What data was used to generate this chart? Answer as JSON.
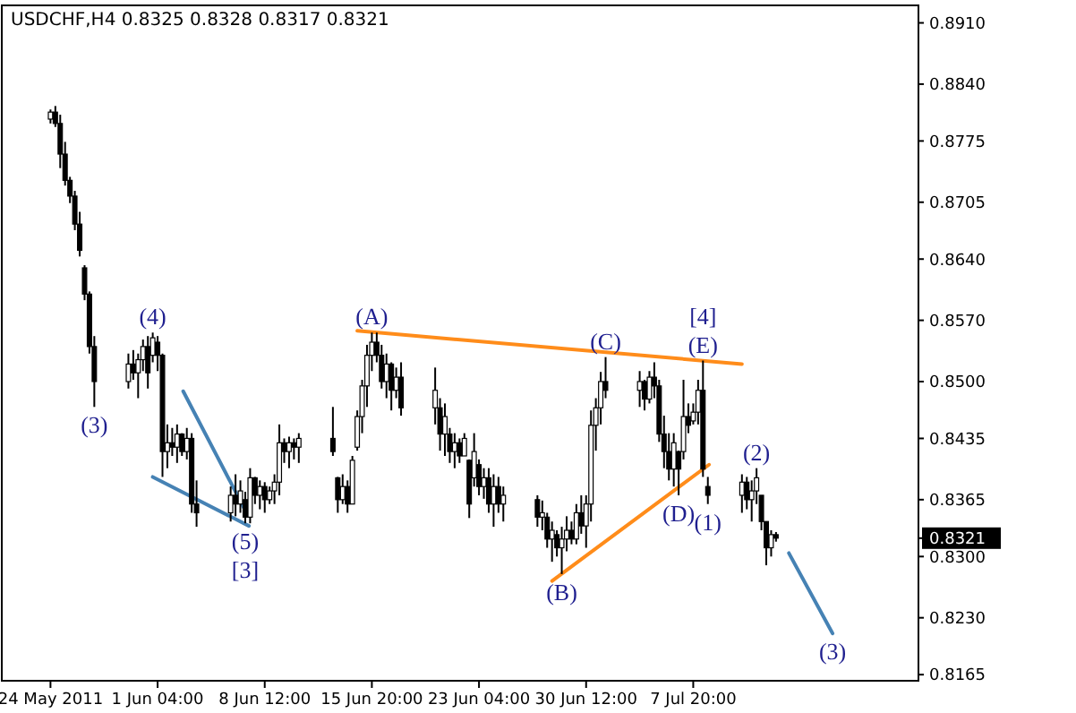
{
  "chart_data": {
    "type": "candlestick",
    "title": "USDCHF,H4  0.8325 0.8328 0.8317 0.8321",
    "color": "#000000",
    "x": [
      "2011-05-24T20:00",
      "2011-05-25T04:00",
      "2011-05-25T12:00",
      "2011-05-25T20:00",
      "2011-05-26T04:00",
      "2011-05-26T12:00",
      "2011-05-26T20:00",
      "2011-05-27T04:00",
      "2011-05-27T12:00",
      "2011-05-27T20:00",
      "2011-05-30T04:00",
      "2011-05-30T12:00",
      "2011-05-30T20:00",
      "2011-05-31T04:00",
      "2011-05-31T12:00",
      "2011-05-31T20:00",
      "2011-06-01T04:00",
      "2011-06-01T12:00",
      "2011-06-01T20:00",
      "2011-06-02T04:00",
      "2011-06-02T12:00",
      "2011-06-02T20:00",
      "2011-06-03T04:00",
      "2011-06-03T12:00",
      "2011-06-03T20:00",
      "2011-06-06T04:00",
      "2011-06-06T12:00",
      "2011-06-06T20:00",
      "2011-06-07T04:00",
      "2011-06-07T12:00",
      "2011-06-07T20:00",
      "2011-06-08T04:00",
      "2011-06-08T12:00",
      "2011-06-08T20:00",
      "2011-06-09T04:00",
      "2011-06-09T12:00",
      "2011-06-09T20:00",
      "2011-06-10T04:00",
      "2011-06-10T12:00",
      "2011-06-10T20:00",
      "2011-06-13T04:00",
      "2011-06-13T12:00",
      "2011-06-13T20:00",
      "2011-06-14T04:00",
      "2011-06-14T12:00",
      "2011-06-14T20:00",
      "2011-06-15T04:00",
      "2011-06-15T12:00",
      "2011-06-15T20:00",
      "2011-06-16T04:00",
      "2011-06-16T12:00",
      "2011-06-16T20:00",
      "2011-06-17T04:00",
      "2011-06-17T12:00",
      "2011-06-17T20:00",
      "2011-06-20T04:00",
      "2011-06-20T12:00",
      "2011-06-20T20:00",
      "2011-06-21T04:00",
      "2011-06-21T12:00",
      "2011-06-21T20:00",
      "2011-06-22T04:00",
      "2011-06-22T12:00",
      "2011-06-22T20:00",
      "2011-06-23T04:00",
      "2011-06-23T12:00",
      "2011-06-23T20:00",
      "2011-06-24T04:00",
      "2011-06-24T12:00",
      "2011-06-24T20:00",
      "2011-06-27T04:00",
      "2011-06-27T12:00",
      "2011-06-27T20:00",
      "2011-06-28T04:00",
      "2011-06-28T12:00",
      "2011-06-28T20:00",
      "2011-06-29T04:00",
      "2011-06-29T12:00",
      "2011-06-29T20:00",
      "2011-06-30T04:00",
      "2011-06-30T12:00",
      "2011-06-30T20:00",
      "2011-07-01T04:00",
      "2011-07-01T12:00",
      "2011-07-01T20:00",
      "2011-07-04T04:00",
      "2011-07-04T12:00",
      "2011-07-04T20:00",
      "2011-07-05T04:00",
      "2011-07-05T12:00",
      "2011-07-05T20:00",
      "2011-07-06T04:00",
      "2011-07-06T12:00",
      "2011-07-06T20:00",
      "2011-07-07T04:00",
      "2011-07-07T12:00",
      "2011-07-07T20:00",
      "2011-07-08T04:00",
      "2011-07-08T12:00",
      "2011-07-08T20:00",
      "2011-07-11T04:00",
      "2011-07-11T12:00",
      "2011-07-11T20:00",
      "2011-07-12T04:00",
      "2011-07-12T12:00",
      "2011-07-12T20:00",
      "2011-07-13T04:00",
      "2011-07-13T12:00"
    ],
    "ohlc": [
      [
        0.88,
        0.8811,
        0.8795,
        0.8808
      ],
      [
        0.8808,
        0.8815,
        0.8791,
        0.8795
      ],
      [
        0.8795,
        0.8805,
        0.8744,
        0.876
      ],
      [
        0.876,
        0.8774,
        0.8724,
        0.873
      ],
      [
        0.873,
        0.8734,
        0.8704,
        0.8712
      ],
      [
        0.8712,
        0.8718,
        0.8673,
        0.868
      ],
      [
        0.868,
        0.8694,
        0.8643,
        0.865
      ],
      [
        0.863,
        0.8633,
        0.8593,
        0.86
      ],
      [
        0.86,
        0.8603,
        0.8532,
        0.854
      ],
      [
        0.854,
        0.8552,
        0.8471,
        0.85
      ],
      [
        0.85,
        0.8532,
        0.8492,
        0.852
      ],
      [
        0.852,
        0.8536,
        0.8502,
        0.851
      ],
      [
        0.851,
        0.8532,
        0.8481,
        0.8525
      ],
      [
        0.8525,
        0.8548,
        0.8512,
        0.854
      ],
      [
        0.854,
        0.8552,
        0.8492,
        0.851
      ],
      [
        0.853,
        0.8556,
        0.8522,
        0.855
      ],
      [
        0.8545,
        0.8552,
        0.8512,
        0.853
      ],
      [
        0.853,
        0.8532,
        0.8391,
        0.842
      ],
      [
        0.842,
        0.8451,
        0.8401,
        0.843
      ],
      [
        0.843,
        0.8447,
        0.8415,
        0.8425
      ],
      [
        0.8425,
        0.8451,
        0.8407,
        0.844
      ],
      [
        0.844,
        0.8441,
        0.8415,
        0.842
      ],
      [
        0.842,
        0.8447,
        0.8411,
        0.8435
      ],
      [
        0.8435,
        0.8441,
        0.835,
        0.836
      ],
      [
        0.836,
        0.8387,
        0.8334,
        0.835
      ],
      [
        0.835,
        0.838,
        0.834,
        0.837
      ],
      [
        0.837,
        0.8394,
        0.8346,
        0.836
      ],
      [
        0.836,
        0.8387,
        0.835,
        0.8375
      ],
      [
        0.8365,
        0.8374,
        0.8338,
        0.8345
      ],
      [
        0.8345,
        0.8401,
        0.8338,
        0.839
      ],
      [
        0.839,
        0.8391,
        0.836,
        0.837
      ],
      [
        0.837,
        0.8387,
        0.8354,
        0.838
      ],
      [
        0.838,
        0.8385,
        0.835,
        0.8365
      ],
      [
        0.8365,
        0.838,
        0.836,
        0.8375
      ],
      [
        0.8375,
        0.8394,
        0.836,
        0.8385
      ],
      [
        0.8385,
        0.8451,
        0.837,
        0.843
      ],
      [
        0.843,
        0.8435,
        0.8407,
        0.842
      ],
      [
        0.842,
        0.8437,
        0.8401,
        0.843
      ],
      [
        0.843,
        0.8435,
        0.8411,
        0.8425
      ],
      [
        0.8425,
        0.8441,
        0.8407,
        0.8435
      ],
      [
        0.8435,
        0.8471,
        0.8415,
        0.842
      ],
      [
        0.839,
        0.8391,
        0.835,
        0.8365
      ],
      [
        0.8365,
        0.8394,
        0.836,
        0.838
      ],
      [
        0.838,
        0.8387,
        0.835,
        0.836
      ],
      [
        0.836,
        0.8415,
        0.836,
        0.841
      ],
      [
        0.8425,
        0.8467,
        0.8421,
        0.846
      ],
      [
        0.846,
        0.8502,
        0.8441,
        0.8495
      ],
      [
        0.8495,
        0.8542,
        0.8471,
        0.853
      ],
      [
        0.853,
        0.8556,
        0.8512,
        0.8545
      ],
      [
        0.8545,
        0.8556,
        0.8522,
        0.853
      ],
      [
        0.853,
        0.8542,
        0.8492,
        0.85
      ],
      [
        0.85,
        0.8532,
        0.8481,
        0.852
      ],
      [
        0.852,
        0.8522,
        0.8467,
        0.849
      ],
      [
        0.849,
        0.8516,
        0.8481,
        0.8505
      ],
      [
        0.8505,
        0.8522,
        0.8461,
        0.847
      ],
      [
        0.847,
        0.8516,
        0.8451,
        0.849
      ],
      [
        0.847,
        0.8481,
        0.8421,
        0.844
      ],
      [
        0.844,
        0.8475,
        0.8415,
        0.846
      ],
      [
        0.844,
        0.8447,
        0.8407,
        0.842
      ],
      [
        0.842,
        0.8441,
        0.8401,
        0.843
      ],
      [
        0.843,
        0.8435,
        0.8407,
        0.8415
      ],
      [
        0.8415,
        0.8441,
        0.8415,
        0.8435
      ],
      [
        0.841,
        0.8411,
        0.8344,
        0.836
      ],
      [
        0.839,
        0.8441,
        0.838,
        0.842
      ],
      [
        0.8405,
        0.8411,
        0.837,
        0.838
      ],
      [
        0.838,
        0.8401,
        0.8366,
        0.839
      ],
      [
        0.839,
        0.8401,
        0.835,
        0.836
      ],
      [
        0.836,
        0.8394,
        0.8334,
        0.838
      ],
      [
        0.838,
        0.8391,
        0.835,
        0.836
      ],
      [
        0.836,
        0.838,
        0.834,
        0.837
      ],
      [
        0.8365,
        0.837,
        0.8334,
        0.8345
      ],
      [
        0.8345,
        0.8364,
        0.833,
        0.835
      ],
      [
        0.8345,
        0.835,
        0.831,
        0.832
      ],
      [
        0.832,
        0.834,
        0.8294,
        0.833
      ],
      [
        0.8325,
        0.833,
        0.83,
        0.831
      ],
      [
        0.831,
        0.8334,
        0.828,
        0.832
      ],
      [
        0.832,
        0.8346,
        0.8306,
        0.833
      ],
      [
        0.833,
        0.834,
        0.8314,
        0.832
      ],
      [
        0.832,
        0.836,
        0.8314,
        0.835
      ],
      [
        0.835,
        0.837,
        0.8326,
        0.8335
      ],
      [
        0.8335,
        0.837,
        0.831,
        0.836
      ],
      [
        0.836,
        0.8467,
        0.834,
        0.845
      ],
      [
        0.845,
        0.8481,
        0.8421,
        0.847
      ],
      [
        0.847,
        0.8511,
        0.8451,
        0.85
      ],
      [
        0.85,
        0.8528,
        0.8481,
        0.849
      ],
      [
        0.849,
        0.8512,
        0.8471,
        0.85
      ],
      [
        0.85,
        0.8502,
        0.8467,
        0.848
      ],
      [
        0.848,
        0.8512,
        0.8475,
        0.8505
      ],
      [
        0.8505,
        0.8522,
        0.8481,
        0.8495
      ],
      [
        0.8495,
        0.8502,
        0.8431,
        0.844
      ],
      [
        0.844,
        0.8461,
        0.8401,
        0.842
      ],
      [
        0.842,
        0.8441,
        0.8387,
        0.84
      ],
      [
        0.84,
        0.8441,
        0.838,
        0.843
      ],
      [
        0.842,
        0.8421,
        0.837,
        0.84
      ],
      [
        0.842,
        0.8502,
        0.8411,
        0.846
      ],
      [
        0.846,
        0.8475,
        0.8441,
        0.845
      ],
      [
        0.8455,
        0.8475,
        0.8451,
        0.8465
      ],
      [
        0.8465,
        0.8502,
        0.8451,
        0.849
      ],
      [
        0.849,
        0.8524,
        0.8391,
        0.84
      ],
      [
        0.838,
        0.8391,
        0.836,
        0.837
      ],
      [
        0.837,
        0.8394,
        0.835,
        0.8385
      ],
      [
        0.8385,
        0.8391,
        0.8354,
        0.8365
      ],
      [
        0.8365,
        0.8387,
        0.834,
        0.8375
      ],
      [
        0.8375,
        0.8401,
        0.836,
        0.839
      ],
      [
        0.837,
        0.837,
        0.833,
        0.834
      ],
      [
        0.834,
        0.834,
        0.829,
        0.831
      ],
      [
        0.831,
        0.833,
        0.83,
        0.8325
      ],
      [
        0.8325,
        0.8328,
        0.8317,
        0.8321
      ]
    ],
    "series": [
      {
        "type": "line",
        "color": "#ff8c1a",
        "x": [
          "2011-06-14T20:00",
          "2011-07-11T04:00"
        ],
        "values": [
          0.8558,
          0.852
        ]
      },
      {
        "type": "line",
        "color": "#ff8c1a",
        "x": [
          "2011-06-28T04:00",
          "2011-07-08T22:00"
        ],
        "values": [
          0.8272,
          0.8405
        ]
      },
      {
        "type": "line",
        "color": "#4682b4",
        "x": [
          "2011-05-31T20:00",
          "2011-06-07T10:00"
        ],
        "values": [
          0.8391,
          0.8335
        ]
      },
      {
        "type": "line",
        "color": "#4682b4",
        "x": [
          "2011-06-02T22:00",
          "2011-06-07T06:00"
        ],
        "values": [
          0.8489,
          0.835
        ]
      },
      {
        "type": "line",
        "color": "#4682b4",
        "x": [
          "2011-07-14T09:00",
          "2011-07-17T09:00"
        ],
        "values": [
          0.8304,
          0.8212
        ]
      }
    ],
    "xlim": [
      "2011-05-21T12:00",
      "2011-07-23T06:00"
    ],
    "xticks": [
      {
        "value": "2011-05-24T20:00",
        "label": "24 May 2011"
      },
      {
        "value": "2011-06-01T04:00",
        "label": "1 Jun 04:00"
      },
      {
        "value": "2011-06-08T12:00",
        "label": "8 Jun 12:00"
      },
      {
        "value": "2011-06-15T20:00",
        "label": "15 Jun 20:00"
      },
      {
        "value": "2011-06-23T04:00",
        "label": "23 Jun 04:00"
      },
      {
        "value": "2011-06-30T12:00",
        "label": "30 Jun 12:00"
      },
      {
        "value": "2011-07-07T20:00",
        "label": "7 Jul 20:00"
      }
    ],
    "ylim": [
      0.8158,
      0.893
    ],
    "yticks": [
      {
        "value": 0.891,
        "label": "0.8910"
      },
      {
        "value": 0.884,
        "label": "0.8840"
      },
      0.8775,
      0.8705,
      {
        "value": 0.864,
        "label": "0.8640"
      },
      {
        "value": 0.857,
        "label": "0.8570"
      },
      {
        "value": 0.85,
        "label": "0.8500"
      },
      0.8435,
      0.8365,
      {
        "value": 0.8321,
        "label": "0.8321"
      },
      {
        "value": 0.83,
        "label": "0.8300"
      },
      {
        "value": 0.823,
        "label": "0.8230"
      },
      0.8165
    ],
    "grid": false,
    "annotations": [
      {
        "text": "(3)",
        "x": "2011-05-27T20:00",
        "y": 0.8471
      },
      {
        "text": "(4)",
        "x": "2011-05-31T20:00",
        "y": 0.8556
      },
      {
        "text": "(5)",
        "x": "2011-06-07T04:00",
        "y": 0.8338
      },
      {
        "text": "[3]",
        "x": "2011-06-07T04:00",
        "y": 0.8338
      },
      {
        "text": "(A)",
        "x": "2011-06-15T20:00",
        "y": 0.8556
      },
      {
        "text": "(B)",
        "x": "2011-06-28T20:00",
        "y": 0.828
      },
      {
        "text": "(C)",
        "x": "2011-07-01T20:00",
        "y": 0.8528
      },
      {
        "text": "(D)",
        "x": "2011-07-06T20:00",
        "y": 0.837
      },
      {
        "text": "(1)",
        "x": "2011-07-08T20:00",
        "y": 0.836
      },
      {
        "text": "(E)",
        "x": "2011-07-08T12:00",
        "y": 0.8524
      },
      {
        "text": "[4]",
        "x": "2011-07-08T12:00",
        "y": 0.8524
      },
      {
        "text": "(2)",
        "x": "2011-07-12T04:00",
        "y": 0.8401
      },
      {
        "text": "(3)",
        "x": "2011-07-17T09:00",
        "y": 0.8212
      }
    ]
  }
}
